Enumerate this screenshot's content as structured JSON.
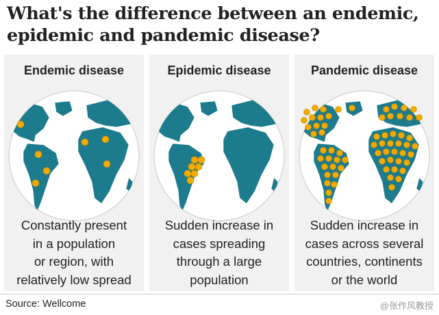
{
  "title": {
    "line1": "What's the difference between an endemic,",
    "line2": "epidemic and pandemic disease?"
  },
  "panels": [
    {
      "heading": "Endemic disease",
      "description": [
        "Constantly present",
        "in a population",
        "or region, with",
        "relatively low spread"
      ]
    },
    {
      "heading": "Epidemic disease",
      "description": [
        "Sudden increase in",
        "cases spreading",
        "through a large",
        "population"
      ]
    },
    {
      "heading": "Pandemic disease",
      "description": [
        "Sudden increase in",
        "cases across several",
        "countries, continents",
        "or the world"
      ]
    }
  ],
  "colors": {
    "land": "#1c7b8c",
    "ocean": "#ffffff",
    "dot": "#f2a900",
    "panel_bg": "#f1f1f1"
  },
  "source": "Source: Wellcome",
  "watermark": "@张作风教授"
}
